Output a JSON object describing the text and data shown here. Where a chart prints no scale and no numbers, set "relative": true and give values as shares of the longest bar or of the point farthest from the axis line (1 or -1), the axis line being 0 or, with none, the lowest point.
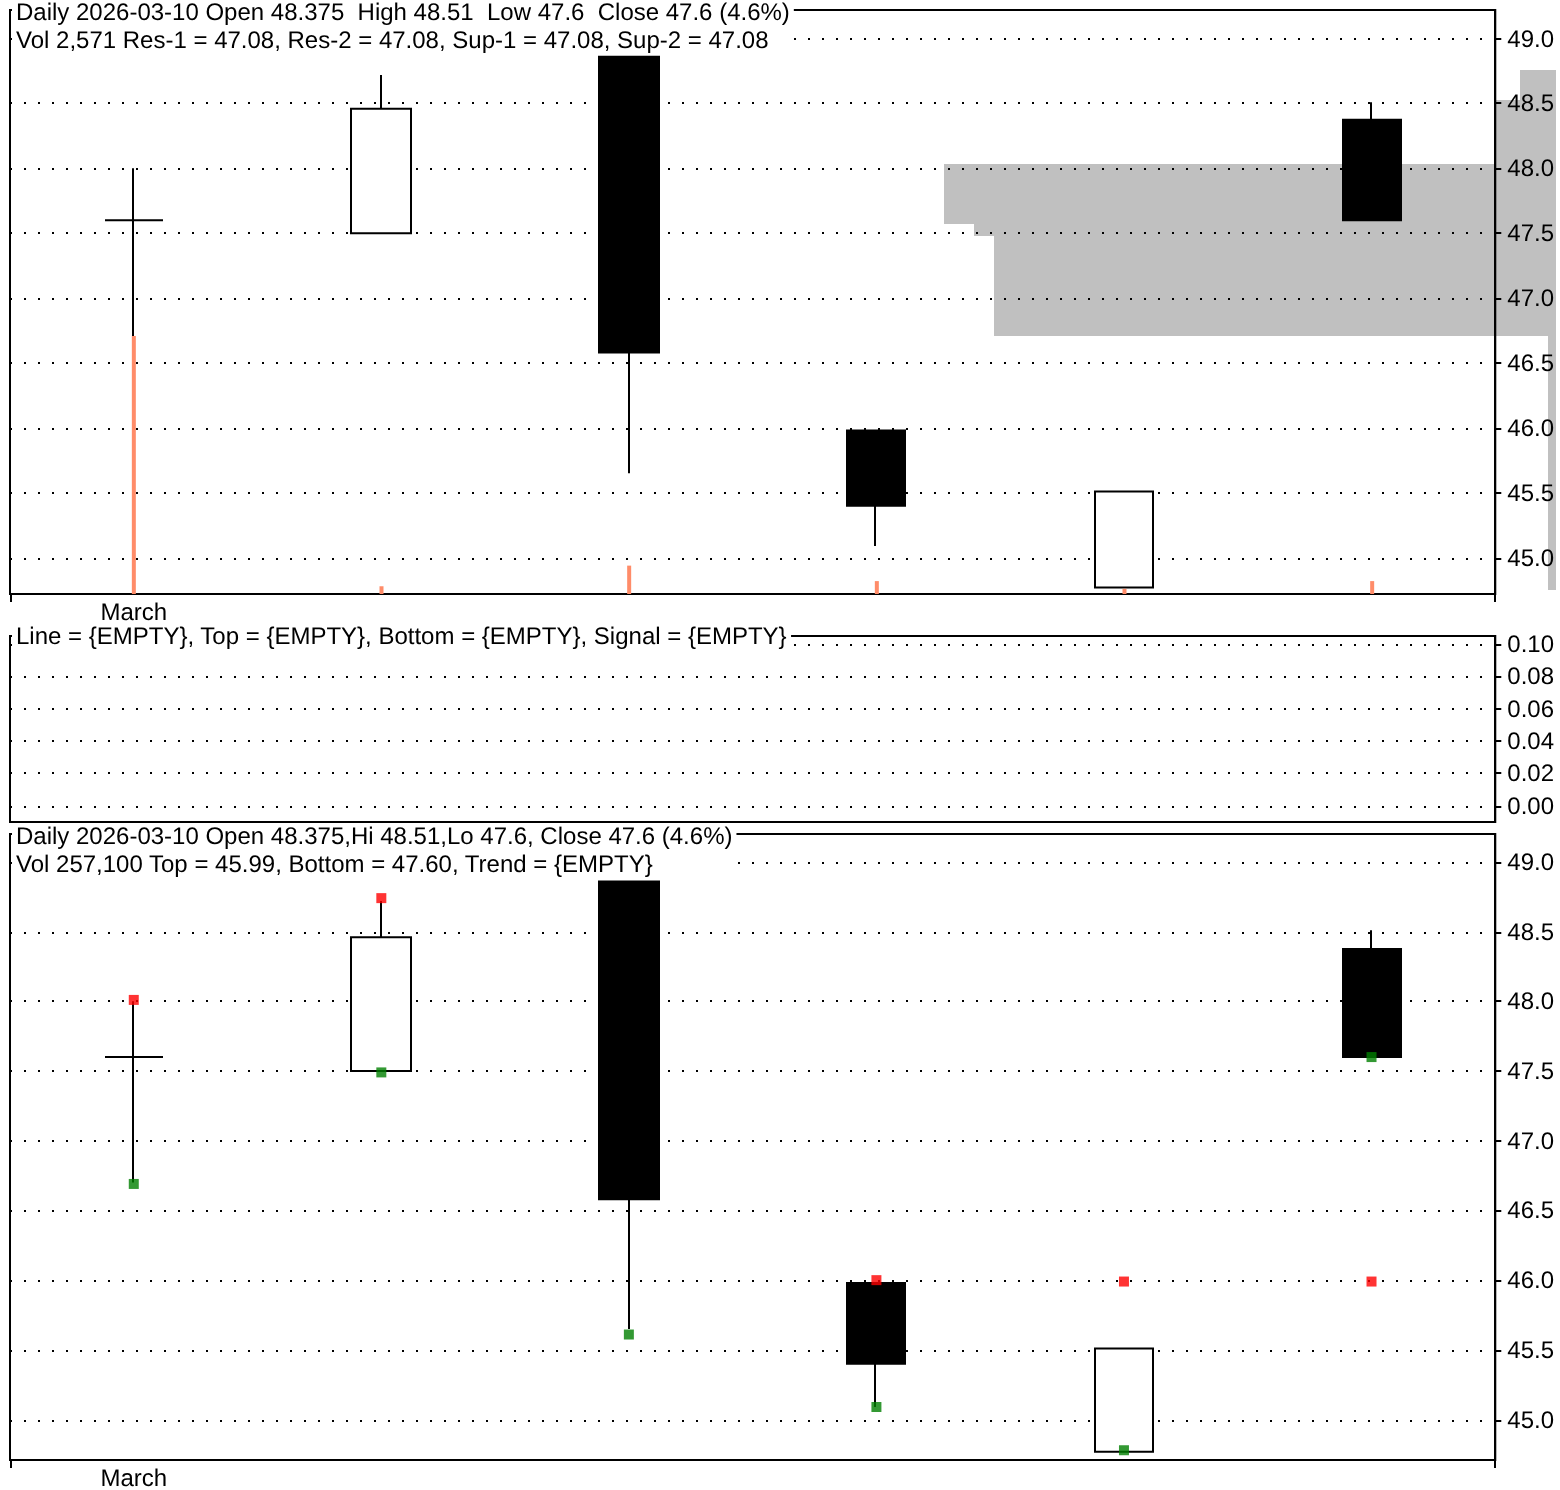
{
  "chart_data": [
    {
      "type": "candlestick",
      "title": "Daily 2026-03-10 Open 48.375  High 48.51  Low 47.6  Close 47.6 (4.6%)",
      "subtitle": "Vol 2,571 Res-1 = 47.08, Res-2 = 47.08, Sup-1 = 47.08, Sup-2 = 47.08",
      "categories": [
        "March",
        null,
        null,
        null,
        null,
        null
      ],
      "ylim": [
        44.72,
        49.22
      ],
      "yticks": [
        {
          "value": 45,
          "label": "45.0"
        },
        {
          "value": 45.5,
          "label": "45.5"
        },
        {
          "value": 46,
          "label": "46.0"
        },
        {
          "value": 46.5,
          "label": "46.5"
        },
        {
          "value": 47,
          "label": "47.0"
        },
        {
          "value": 47.5,
          "label": "47.5"
        },
        {
          "value": 48,
          "label": "48.0"
        },
        {
          "value": 48.5,
          "label": "48.5"
        },
        {
          "value": 49,
          "label": "49.0"
        }
      ],
      "grid": "y",
      "ohlc": [
        [
          47.6,
          48.0,
          46.7,
          47.6
        ],
        [
          47.5,
          48.72,
          47.5,
          48.46
        ],
        [
          48.86,
          48.86,
          45.65,
          46.58
        ],
        [
          45.98,
          45.98,
          45.09,
          45.4
        ],
        [
          44.77,
          45.51,
          44.77,
          45.51
        ],
        [
          48.375,
          48.51,
          47.6,
          47.6
        ]
      ]
    },
    {
      "type": "line",
      "title": "Line = {EMPTY}, Top = {EMPTY}, Bottom = {EMPTY}, Signal = {EMPTY}",
      "categories": [
        null,
        null,
        null,
        null,
        null,
        null
      ],
      "ylim": [
        -0.01,
        0.105
      ],
      "yticks": [
        {
          "value": 0,
          "label": "0.00"
        },
        {
          "value": 0.02,
          "label": "0.02"
        },
        {
          "value": 0.04,
          "label": "0.04"
        },
        {
          "value": 0.06,
          "label": "0.06"
        },
        {
          "value": 0.08,
          "label": "0.08"
        },
        {
          "value": 0.1,
          "label": "0.10"
        }
      ],
      "grid": "y",
      "tick_labels": "y"
    },
    {
      "type": "candlestick",
      "title": "Daily 2026-03-10 Open 48.375,Hi 48.51,Lo 47.6, Close 47.6 (4.6%)",
      "subtitle": "Vol 257,100 Top = 45.99, Bottom = 47.60, Trend = {EMPTY}",
      "categories": [
        "March",
        null,
        null,
        null,
        null,
        null
      ],
      "ylim": [
        44.71,
        49.2
      ],
      "yticks": [
        {
          "value": 45,
          "label": "45.0"
        },
        {
          "value": 45.5,
          "label": "45.5"
        },
        {
          "value": 46,
          "label": "46.0"
        },
        {
          "value": 46.5,
          "label": "46.5"
        },
        {
          "value": 47,
          "label": "47.0"
        },
        {
          "value": 47.5,
          "label": "47.5"
        },
        {
          "value": 48,
          "label": "48.0"
        },
        {
          "value": 48.5,
          "label": "48.5"
        },
        {
          "value": 49,
          "label": "49.0"
        }
      ],
      "grid": "y",
      "ohlc": [
        [
          47.6,
          48.0,
          46.7,
          47.6
        ],
        [
          47.5,
          48.72,
          47.5,
          48.46
        ],
        [
          48.86,
          48.86,
          45.65,
          46.58
        ],
        [
          45.98,
          45.98,
          45.09,
          45.4
        ],
        [
          44.77,
          45.51,
          44.77,
          45.51
        ],
        [
          48.375,
          48.51,
          47.6,
          47.6
        ]
      ],
      "series": [
        {
          "type": "scatter",
          "marker": "square",
          "color": "#ff0000",
          "values": [
            48.01,
            48.74,
            null,
            46.0,
            45.99,
            45.99
          ]
        },
        {
          "type": "scatter",
          "marker": "square",
          "color": "#008000",
          "values": [
            46.69,
            47.49,
            45.61,
            45.09,
            44.78,
            47.6
          ]
        }
      ]
    },
    {
      "type": "bar",
      "relative": true,
      "tick_labels": false,
      "categories": [
        null,
        null,
        null,
        null,
        null,
        null
      ],
      "color": "#ff8c69",
      "values": [
        1,
        0.03,
        0.11,
        0.05,
        0.02,
        0.05
      ]
    }
  ]
}
